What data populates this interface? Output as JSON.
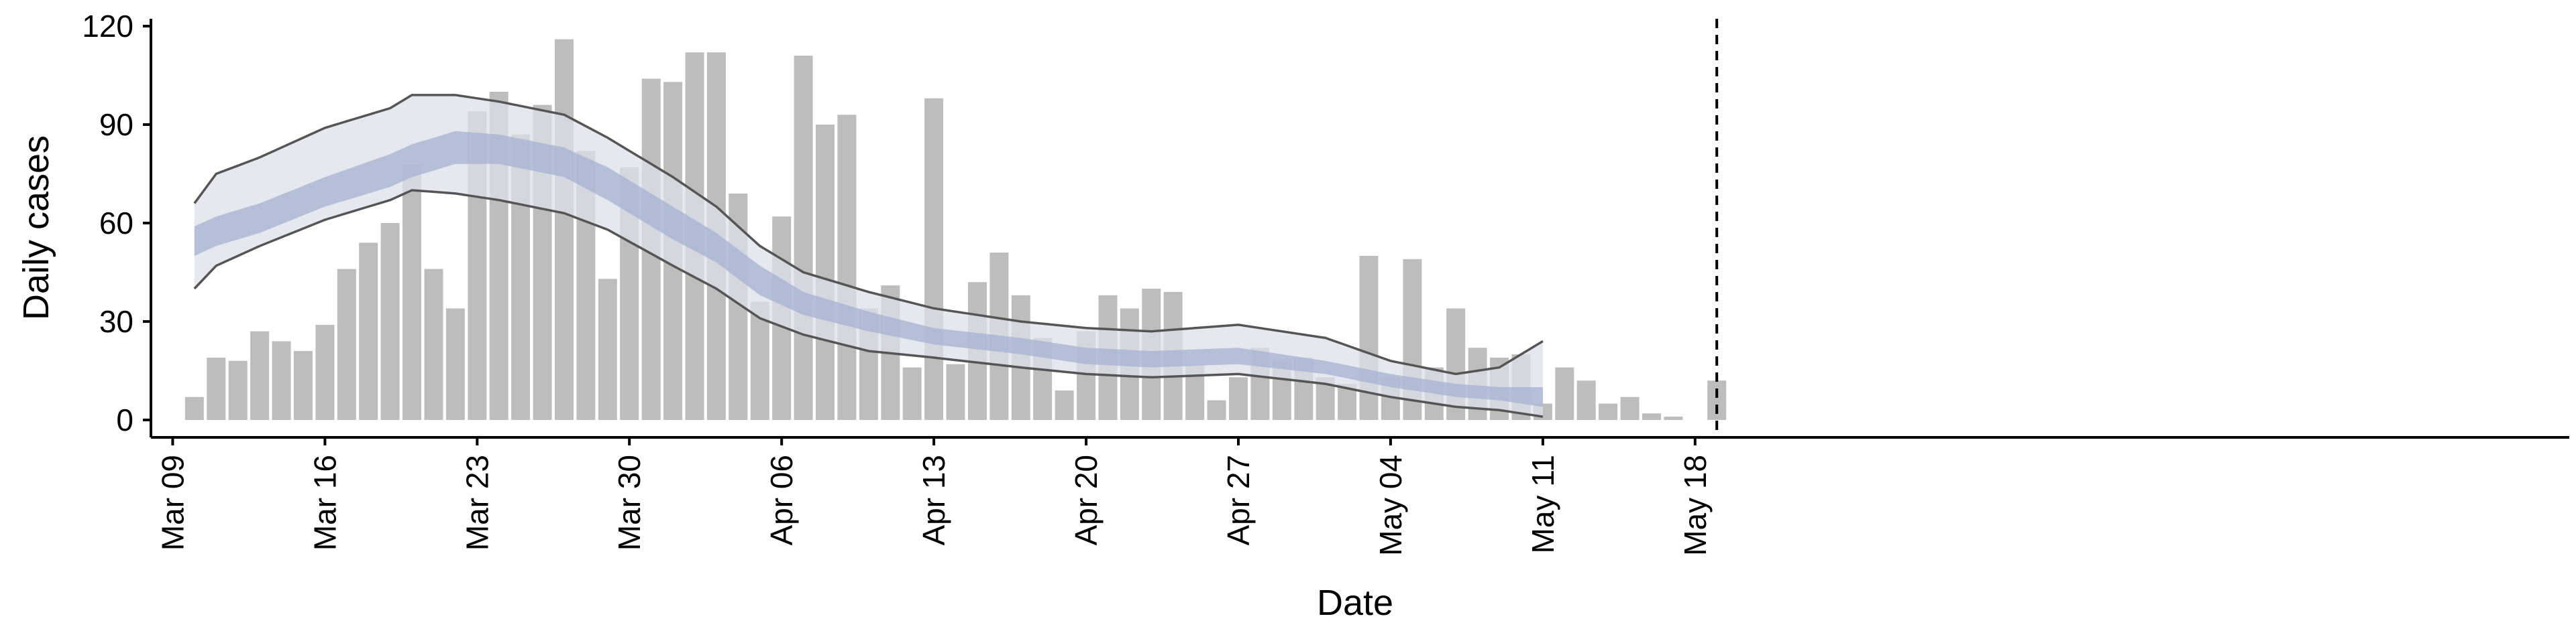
{
  "chart_data": {
    "type": "bar",
    "title": "",
    "xlabel": "Date",
    "ylabel": "Daily cases",
    "ylim": [
      0,
      120
    ],
    "yticks": [
      0,
      30,
      60,
      90,
      120
    ],
    "x_start": "2020-03-08",
    "x_end": "2020-05-21",
    "xticks": [
      {
        "date": "2020-03-09",
        "label": "Mar 09"
      },
      {
        "date": "2020-03-16",
        "label": "Mar 16"
      },
      {
        "date": "2020-03-23",
        "label": "Mar 23"
      },
      {
        "date": "2020-03-30",
        "label": "Mar 30"
      },
      {
        "date": "2020-04-06",
        "label": "Apr 06"
      },
      {
        "date": "2020-04-13",
        "label": "Apr 13"
      },
      {
        "date": "2020-04-20",
        "label": "Apr 20"
      },
      {
        "date": "2020-04-27",
        "label": "Apr 27"
      },
      {
        "date": "2020-05-04",
        "label": "May 04"
      },
      {
        "date": "2020-05-11",
        "label": "May 11"
      },
      {
        "date": "2020-05-18",
        "label": "May 18"
      }
    ],
    "bars": {
      "start_date": "2020-03-10",
      "color": "#bdbdbd",
      "values": [
        7,
        19,
        18,
        27,
        24,
        21,
        29,
        46,
        54,
        60,
        78,
        46,
        34,
        94,
        100,
        87,
        96,
        116,
        82,
        43,
        77,
        104,
        103,
        112,
        112,
        69,
        36,
        62,
        111,
        90,
        93,
        34,
        41,
        16,
        98,
        17,
        42,
        51,
        38,
        25,
        9,
        27,
        38,
        34,
        40,
        39,
        17,
        6,
        13,
        22,
        18,
        19,
        13,
        11,
        50,
        13,
        49,
        16,
        34,
        22,
        19,
        20,
        5,
        16,
        12,
        5,
        7,
        2,
        1,
        0,
        12
      ]
    },
    "vline": {
      "date": "2020-05-19",
      "style": "dashed",
      "color": "#000000"
    },
    "estimate": {
      "start_date": "2020-03-10",
      "end_date": "2020-05-11",
      "median_color": "#7f8bb0",
      "inner_band_color": "#a9b4d2",
      "outer_band_color": "#dde0ea",
      "outline_color": "#555555",
      "anchors": [
        {
          "date": "2020-03-10",
          "outer_low": 40,
          "inner_low": 50,
          "inner_high": 59,
          "outer_high": 66
        },
        {
          "date": "2020-03-11",
          "outer_low": 47,
          "inner_low": 53,
          "inner_high": 62,
          "outer_high": 75
        },
        {
          "date": "2020-03-13",
          "outer_low": 53,
          "inner_low": 57,
          "inner_high": 66,
          "outer_high": 80
        },
        {
          "date": "2020-03-16",
          "outer_low": 61,
          "inner_low": 65,
          "inner_high": 74,
          "outer_high": 89
        },
        {
          "date": "2020-03-19",
          "outer_low": 67,
          "inner_low": 71,
          "inner_high": 81,
          "outer_high": 95
        },
        {
          "date": "2020-03-20",
          "outer_low": 70,
          "inner_low": 74,
          "inner_high": 84,
          "outer_high": 99
        },
        {
          "date": "2020-03-22",
          "outer_low": 69,
          "inner_low": 78,
          "inner_high": 88,
          "outer_high": 99
        },
        {
          "date": "2020-03-24",
          "outer_low": 67,
          "inner_low": 78,
          "inner_high": 87,
          "outer_high": 97
        },
        {
          "date": "2020-03-27",
          "outer_low": 63,
          "inner_low": 74,
          "inner_high": 83,
          "outer_high": 93
        },
        {
          "date": "2020-03-29",
          "outer_low": 58,
          "inner_low": 67,
          "inner_high": 77,
          "outer_high": 86
        },
        {
          "date": "2020-04-01",
          "outer_low": 47,
          "inner_low": 55,
          "inner_high": 65,
          "outer_high": 74
        },
        {
          "date": "2020-04-03",
          "outer_low": 40,
          "inner_low": 48,
          "inner_high": 57,
          "outer_high": 65
        },
        {
          "date": "2020-04-05",
          "outer_low": 31,
          "inner_low": 38,
          "inner_high": 47,
          "outer_high": 53
        },
        {
          "date": "2020-04-07",
          "outer_low": 26,
          "inner_low": 32,
          "inner_high": 39,
          "outer_high": 45
        },
        {
          "date": "2020-04-10",
          "outer_low": 21,
          "inner_low": 27,
          "inner_high": 33,
          "outer_high": 39
        },
        {
          "date": "2020-04-13",
          "outer_low": 19,
          "inner_low": 23,
          "inner_high": 28,
          "outer_high": 34
        },
        {
          "date": "2020-04-17",
          "outer_low": 16,
          "inner_low": 20,
          "inner_high": 25,
          "outer_high": 30
        },
        {
          "date": "2020-04-20",
          "outer_low": 14,
          "inner_low": 17,
          "inner_high": 22,
          "outer_high": 28
        },
        {
          "date": "2020-04-23",
          "outer_low": 13,
          "inner_low": 16,
          "inner_high": 21,
          "outer_high": 27
        },
        {
          "date": "2020-04-27",
          "outer_low": 14,
          "inner_low": 17,
          "inner_high": 22,
          "outer_high": 29
        },
        {
          "date": "2020-05-01",
          "outer_low": 11,
          "inner_low": 14,
          "inner_high": 18,
          "outer_high": 25
        },
        {
          "date": "2020-05-04",
          "outer_low": 7,
          "inner_low": 10,
          "inner_high": 14,
          "outer_high": 18
        },
        {
          "date": "2020-05-07",
          "outer_low": 4,
          "inner_low": 7,
          "inner_high": 11,
          "outer_high": 14
        },
        {
          "date": "2020-05-09",
          "outer_low": 3,
          "inner_low": 6,
          "inner_high": 10,
          "outer_high": 16
        },
        {
          "date": "2020-05-11",
          "outer_low": 1,
          "inner_low": 4,
          "inner_high": 10,
          "outer_high": 24
        }
      ]
    }
  }
}
